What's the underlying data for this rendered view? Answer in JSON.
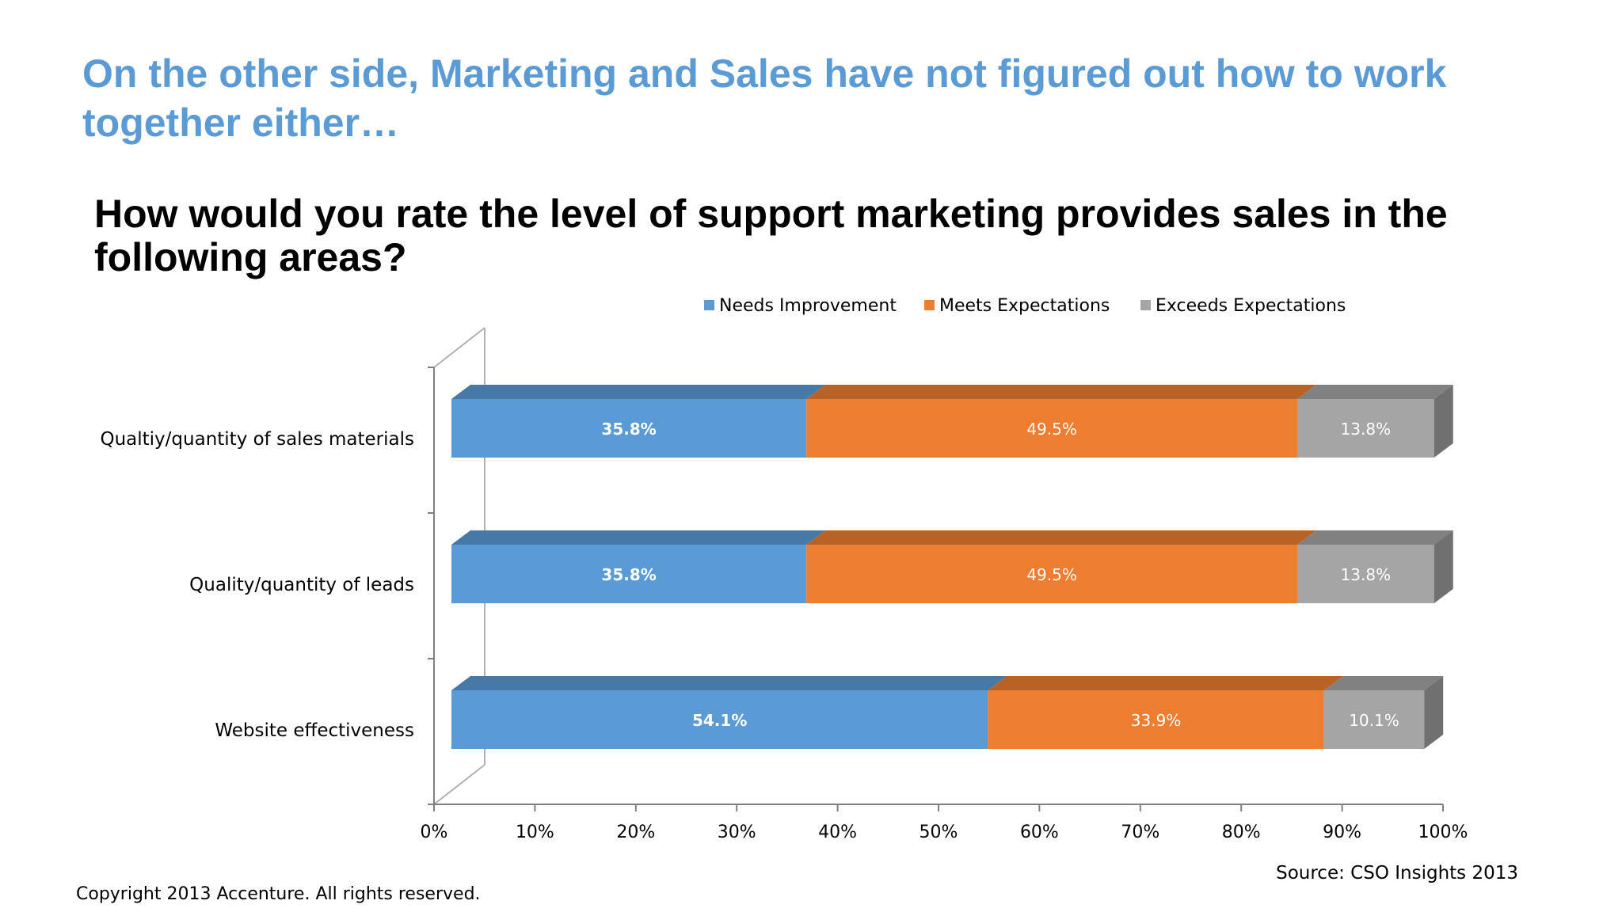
{
  "slide": {
    "title": "On the other side, Marketing and Sales have not figured out how to work together either…",
    "source": "Source: CSO Insights 2013",
    "copyright": "Copyright 2013 Accenture. All rights reserved."
  },
  "chart_data": {
    "type": "bar",
    "orientation": "horizontal",
    "stacked": true,
    "percent_stacked": true,
    "style": "3d",
    "title": "How would you rate the level of support marketing provides sales in the following areas?",
    "categories": [
      "Qualtiy/quantity of sales materials",
      "Quality/quantity of leads",
      "Website effectiveness"
    ],
    "series": [
      {
        "name": "Needs Improvement",
        "color": "#5b9bd5",
        "label_color": "#ffffff",
        "label_bold": true,
        "values": [
          35.8,
          35.8,
          54.1
        ],
        "labels": [
          "35.8%",
          "35.8%",
          "54.1%"
        ]
      },
      {
        "name": "Meets Expectations",
        "color": "#ed7d31",
        "label_color": "#ffffff",
        "label_bold": false,
        "values": [
          49.5,
          49.5,
          33.9
        ],
        "labels": [
          "49.5%",
          "49.5%",
          "33.9%"
        ]
      },
      {
        "name": "Exceeds Expectations",
        "color": "#a5a5a5",
        "label_color": "#ffffff",
        "label_bold": false,
        "values": [
          13.8,
          13.8,
          10.1
        ],
        "labels": [
          "13.8%",
          "13.8%",
          "10.1%"
        ]
      }
    ],
    "xlim": [
      0,
      100
    ],
    "x_ticks": [
      0,
      10,
      20,
      30,
      40,
      50,
      60,
      70,
      80,
      90,
      100
    ],
    "x_tick_labels": [
      "0%",
      "10%",
      "20%",
      "30%",
      "40%",
      "50%",
      "60%",
      "70%",
      "80%",
      "90%",
      "100%"
    ],
    "legend": "top",
    "grid": false
  }
}
